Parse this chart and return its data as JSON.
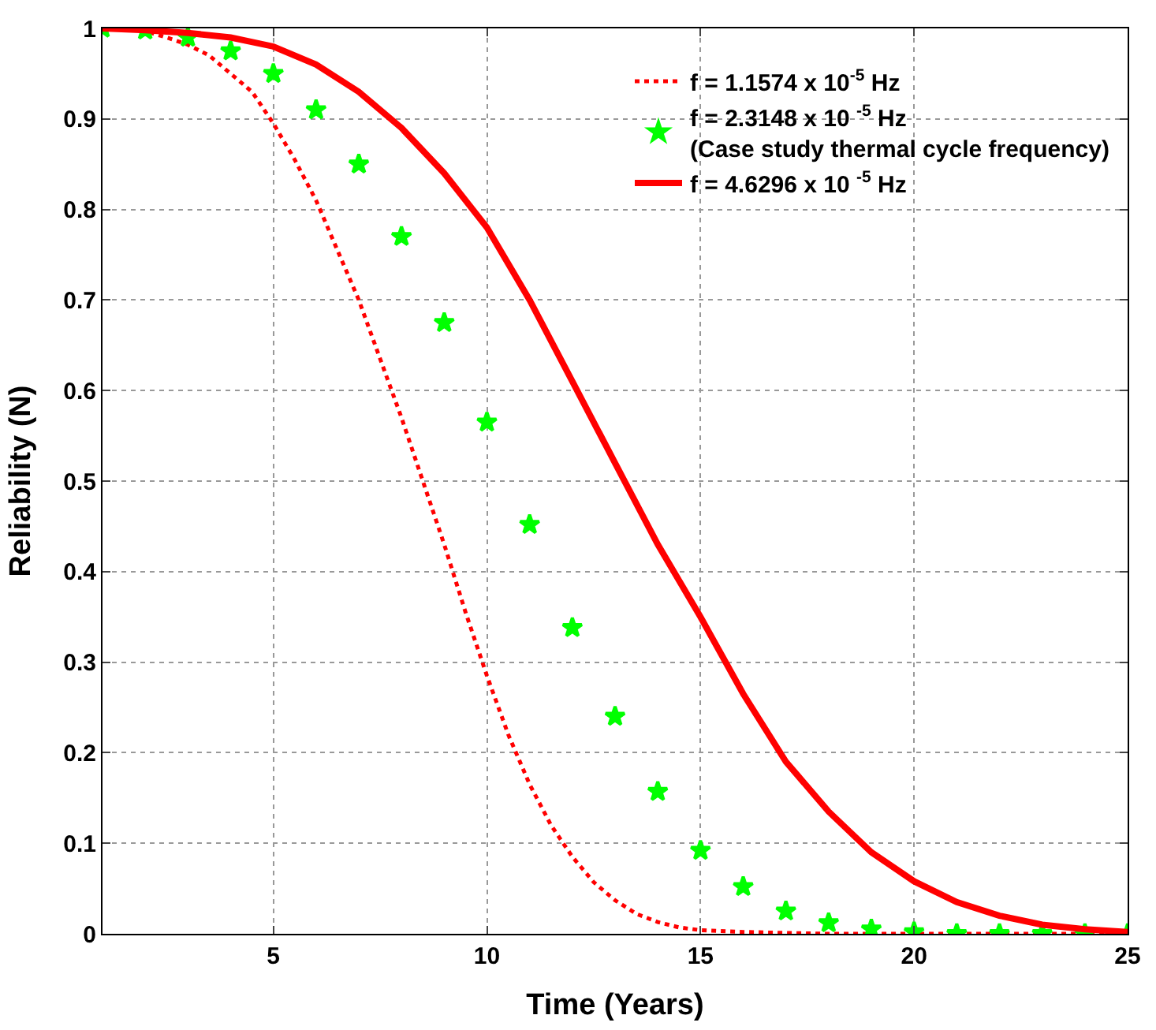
{
  "chart_data": {
    "type": "line",
    "xlabel": "Time (Years)",
    "ylabel": "Reliability (N)",
    "xlim": [
      1,
      25
    ],
    "xticks": [
      5,
      10,
      15,
      20,
      25
    ],
    "ylim": [
      0,
      1
    ],
    "yticks": [
      0,
      0.1,
      0.2,
      0.3,
      0.4,
      0.5,
      0.6,
      0.7,
      0.8,
      0.9,
      1
    ],
    "grid": true,
    "legend": "top right",
    "series": [
      {
        "name": "f = 1.1574 x 10$^{-5}$ Hz",
        "color": "#ff0000",
        "line_style": "dotted",
        "marker": "none",
        "x": [
          1,
          1.5,
          2,
          2.5,
          3,
          3.5,
          4,
          4.5,
          5,
          5.5,
          6,
          6.5,
          7,
          7.5,
          8,
          8.5,
          9,
          9.5,
          10,
          10.5,
          11,
          11.5,
          12,
          12.5,
          13,
          13.5,
          14,
          14.5,
          15,
          16,
          17,
          18,
          19,
          20,
          21,
          22,
          23,
          24,
          25
        ],
        "values": [
          1,
          0.999,
          0.997,
          0.99,
          0.982,
          0.97,
          0.95,
          0.93,
          0.895,
          0.855,
          0.81,
          0.755,
          0.7,
          0.635,
          0.57,
          0.5,
          0.43,
          0.355,
          0.285,
          0.22,
          0.165,
          0.12,
          0.085,
          0.057,
          0.037,
          0.022,
          0.013,
          0.007,
          0.004,
          0.002,
          0.001,
          0,
          0,
          0,
          0,
          0,
          0,
          0,
          0
        ]
      },
      {
        "name": "f = 2.3148 x 10 $^{-5}$ Hz\n(Case study thermal cycle frequency)",
        "color": "#00ff00",
        "type": "scatter",
        "marker": "star",
        "x": [
          1,
          2,
          3,
          4,
          5,
          6,
          7,
          8,
          9,
          10,
          11,
          12,
          13,
          14,
          15,
          16,
          17,
          18,
          19,
          20,
          21,
          22,
          23,
          24,
          25
        ],
        "values": [
          1,
          0.998,
          0.99,
          0.975,
          0.95,
          0.91,
          0.85,
          0.77,
          0.675,
          0.565,
          0.452,
          0.338,
          0.24,
          0.157,
          0.092,
          0.052,
          0.025,
          0.012,
          0.005,
          0.002,
          0,
          0,
          0,
          0,
          0
        ]
      },
      {
        "name": "f = 4.6296 x 10 $^{-5}$ Hz",
        "color": "#ff0000",
        "line_style": "solid",
        "marker": "none",
        "x": [
          1,
          2,
          3,
          4,
          5,
          6,
          7,
          8,
          9,
          10,
          11,
          12,
          13,
          14,
          15,
          16,
          17,
          18,
          19,
          20,
          21,
          22,
          23,
          24,
          25
        ],
        "values": [
          1,
          0.998,
          0.995,
          0.99,
          0.98,
          0.96,
          0.93,
          0.89,
          0.84,
          0.78,
          0.7,
          0.61,
          0.52,
          0.43,
          0.35,
          0.265,
          0.19,
          0.135,
          0.09,
          0.058,
          0.035,
          0.02,
          0.01,
          0.005,
          0.002
        ]
      }
    ]
  }
}
